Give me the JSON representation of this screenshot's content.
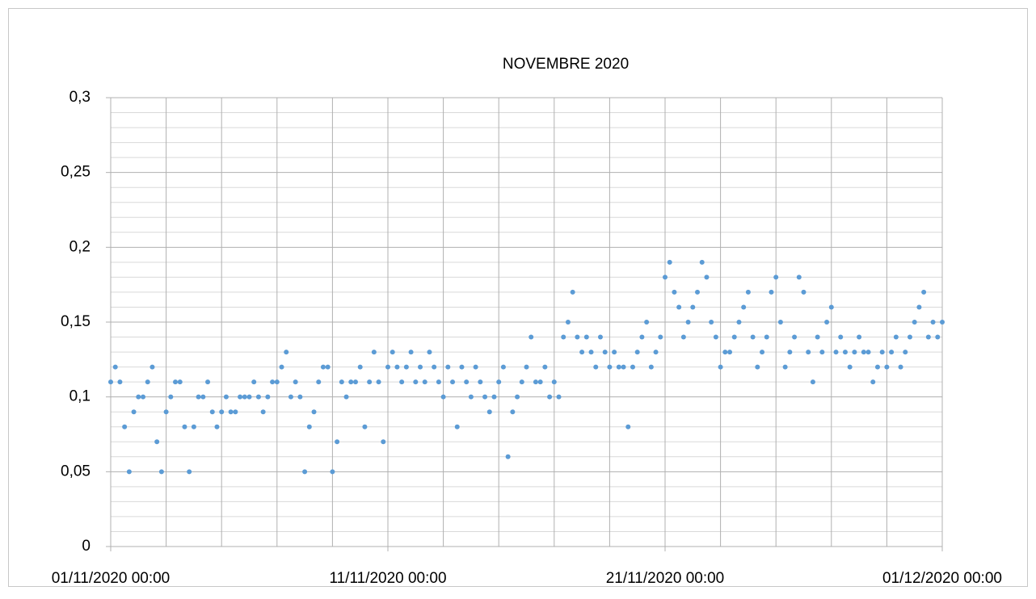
{
  "chart_data": {
    "type": "scatter",
    "title": "NOVEMBRE 2020",
    "color": "#5b9bd5",
    "xlim": [
      0,
      720
    ],
    "xticks": [
      {
        "value": 0,
        "label": "01/11/2020 00:00"
      },
      {
        "value": 240,
        "label": "11/11/2020 00:00"
      },
      {
        "value": 480,
        "label": "21/11/2020 00:00"
      },
      {
        "value": 720,
        "label": "01/12/2020 00:00"
      }
    ],
    "x_gridlines": [
      0,
      48,
      96,
      144,
      192,
      240,
      288,
      336,
      384,
      432,
      480,
      528,
      576,
      624,
      672,
      720
    ],
    "ylim": [
      0,
      0.3
    ],
    "yticks": [
      {
        "value": 0,
        "label": "0"
      },
      {
        "value": 0.05,
        "label": "0,05"
      },
      {
        "value": 0.1,
        "label": "0,1"
      },
      {
        "value": 0.15,
        "label": "0,15"
      },
      {
        "value": 0.2,
        "label": "0,2"
      },
      {
        "value": 0.25,
        "label": "0,25"
      },
      {
        "value": 0.3,
        "label": "0,3"
      }
    ],
    "y_minor_gridlines": [
      0.01,
      0.02,
      0.03,
      0.04,
      0.06,
      0.07,
      0.08,
      0.09,
      0.11,
      0.12,
      0.13,
      0.14,
      0.16,
      0.17,
      0.18,
      0.19,
      0.21,
      0.22,
      0.23,
      0.24,
      0.26,
      0.27,
      0.28,
      0.29
    ],
    "grid": true,
    "x": [
      0,
      4,
      8,
      12,
      16,
      20,
      24,
      28,
      32,
      36,
      40,
      44,
      48,
      52,
      56,
      60,
      64,
      68,
      72,
      76,
      80,
      84,
      88,
      92,
      96,
      100,
      104,
      108,
      112,
      116,
      120,
      124,
      128,
      132,
      136,
      140,
      144,
      148,
      152,
      156,
      160,
      164,
      168,
      172,
      176,
      180,
      184,
      188,
      192,
      196,
      200,
      204,
      208,
      212,
      216,
      220,
      224,
      228,
      232,
      236,
      240,
      244,
      248,
      252,
      256,
      260,
      264,
      268,
      272,
      276,
      280,
      284,
      288,
      292,
      296,
      300,
      304,
      308,
      312,
      316,
      320,
      324,
      328,
      332,
      336,
      340,
      344,
      348,
      352,
      356,
      360,
      364,
      368,
      372,
      376,
      380,
      384,
      388,
      392,
      396,
      400,
      404,
      408,
      412,
      416,
      420,
      424,
      428,
      432,
      436,
      440,
      444,
      448,
      452,
      456,
      460,
      464,
      468,
      472,
      476,
      480,
      484,
      488,
      492,
      496,
      500,
      504,
      508,
      512,
      516,
      520,
      524,
      528,
      532,
      536,
      540,
      544,
      548,
      552,
      556,
      560,
      564,
      568,
      572,
      576,
      580,
      584,
      588,
      592,
      596,
      600,
      604,
      608,
      612,
      616,
      620,
      624,
      628,
      632,
      636,
      640,
      644,
      648,
      652,
      656,
      660,
      664,
      668,
      672,
      676,
      680,
      684,
      688,
      692,
      696,
      700,
      704,
      708,
      712,
      716,
      720
    ],
    "values": [
      0.11,
      0.12,
      0.11,
      0.08,
      0.05,
      0.09,
      0.1,
      0.1,
      0.11,
      0.12,
      0.07,
      0.05,
      0.09,
      0.1,
      0.11,
      0.11,
      0.08,
      0.05,
      0.08,
      0.1,
      0.1,
      0.11,
      0.09,
      0.08,
      0.09,
      0.1,
      0.09,
      0.09,
      0.1,
      0.1,
      0.1,
      0.11,
      0.1,
      0.09,
      0.1,
      0.11,
      0.11,
      0.12,
      0.13,
      0.1,
      0.11,
      0.1,
      0.05,
      0.08,
      0.09,
      0.11,
      0.12,
      0.12,
      0.05,
      0.07,
      0.11,
      0.1,
      0.11,
      0.11,
      0.12,
      0.08,
      0.11,
      0.13,
      0.11,
      0.07,
      0.12,
      0.13,
      0.12,
      0.11,
      0.12,
      0.13,
      0.11,
      0.12,
      0.11,
      0.13,
      0.12,
      0.11,
      0.1,
      0.12,
      0.11,
      0.08,
      0.12,
      0.11,
      0.1,
      0.12,
      0.11,
      0.1,
      0.09,
      0.1,
      0.11,
      0.12,
      0.06,
      0.09,
      0.1,
      0.11,
      0.12,
      0.14,
      0.11,
      0.11,
      0.12,
      0.1,
      0.11,
      0.1,
      0.14,
      0.15,
      0.17,
      0.14,
      0.13,
      0.14,
      0.13,
      0.12,
      0.14,
      0.13,
      0.12,
      0.13,
      0.12,
      0.12,
      0.08,
      0.12,
      0.13,
      0.14,
      0.15,
      0.12,
      0.13,
      0.14,
      0.18,
      0.19,
      0.17,
      0.16,
      0.14,
      0.15,
      0.16,
      0.17,
      0.19,
      0.18,
      0.15,
      0.14,
      0.12,
      0.13,
      0.13,
      0.14,
      0.15,
      0.16,
      0.17,
      0.14,
      0.12,
      0.13,
      0.14,
      0.17,
      0.18,
      0.15,
      0.12,
      0.13,
      0.14,
      0.18,
      0.17,
      0.13,
      0.11,
      0.14,
      0.13,
      0.15,
      0.16,
      0.13,
      0.14,
      0.13,
      0.12,
      0.13,
      0.14,
      0.13,
      0.13,
      0.11,
      0.12,
      0.13,
      0.12,
      0.13,
      0.14,
      0.12,
      0.13,
      0.14,
      0.15,
      0.16,
      0.17,
      0.14,
      0.15,
      0.14,
      0.15
    ]
  }
}
